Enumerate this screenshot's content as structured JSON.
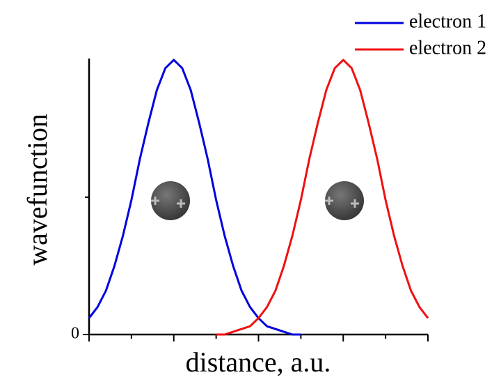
{
  "chart_data": {
    "type": "line",
    "x_label": "distance, a.u.",
    "y_label": "wavefunction",
    "xlim": [
      0,
      4
    ],
    "ylim": [
      0,
      1
    ],
    "yticks": [
      0
    ],
    "legend": "top-right",
    "x": [
      0,
      0.1,
      0.2,
      0.3,
      0.4,
      0.5,
      0.6,
      0.7,
      0.8,
      0.9,
      1.0,
      1.1,
      1.2,
      1.3,
      1.4,
      1.5,
      1.6,
      1.7,
      1.8,
      1.9,
      2.0,
      2.1,
      2.2,
      2.3,
      2.4,
      2.5,
      2.6,
      2.7,
      2.8,
      2.9,
      3.0,
      3.1,
      3.2,
      3.3,
      3.4,
      3.5,
      3.6,
      3.7,
      3.8,
      3.9,
      4.0
    ],
    "series": [
      {
        "name": "electron 1",
        "color": "#0000e0",
        "values": [
          0.06,
          0.1,
          0.16,
          0.25,
          0.36,
          0.49,
          0.64,
          0.77,
          0.89,
          0.97,
          1,
          0.97,
          0.89,
          0.77,
          0.64,
          0.49,
          0.36,
          0.25,
          0.16,
          0.1,
          0.06,
          0.03,
          0.02,
          0.01,
          0,
          0,
          null,
          null,
          null,
          null,
          null,
          null,
          null,
          null,
          null,
          null,
          null,
          null,
          null,
          null,
          null
        ]
      },
      {
        "name": "electron 2",
        "color": "#f01010",
        "values": [
          null,
          null,
          null,
          null,
          null,
          null,
          null,
          null,
          null,
          null,
          null,
          null,
          null,
          null,
          null,
          0,
          0,
          0.01,
          0.02,
          0.03,
          0.06,
          0.1,
          0.16,
          0.25,
          0.36,
          0.49,
          0.64,
          0.77,
          0.89,
          0.97,
          1,
          0.97,
          0.89,
          0.77,
          0.64,
          0.49,
          0.36,
          0.25,
          0.16,
          0.1,
          0.06
        ]
      }
    ]
  }
}
